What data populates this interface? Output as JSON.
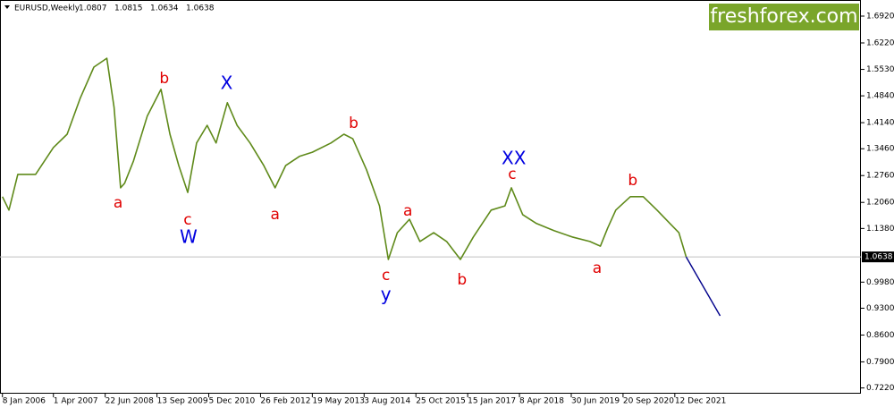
{
  "chart_data": {
    "type": "line",
    "symbol": "EURUSD,Weekly",
    "ohlc": [
      1.0807,
      1.0815,
      1.0634,
      1.0638
    ],
    "watermark": "freshforex.com",
    "last_price": 1.0638,
    "series": [
      {
        "color": "#5f8a1a",
        "x": [
          0,
          8,
          19,
          41,
          63,
          80,
          96,
          113,
          129,
          138,
          146,
          151,
          162,
          179,
          196,
          207,
          218,
          229,
          240,
          253,
          264,
          278,
          290,
          306,
          323,
          337,
          350,
          367,
          383,
          406,
          422,
          433,
          450,
          466,
          477,
          488,
          503,
          516,
          533,
          549,
          566,
          582,
          604,
          621,
          629,
          643,
          660,
          682,
          704,
          726,
          739,
          748,
          758,
          776,
          792,
          809,
          825,
          836,
          845
        ],
        "values": [
          1.221,
          1.186,
          1.279,
          1.279,
          1.349,
          1.384,
          1.477,
          1.559,
          1.582,
          1.454,
          1.244,
          1.256,
          1.314,
          1.431,
          1.501,
          1.384,
          1.302,
          1.232,
          1.361,
          1.407,
          1.361,
          1.466,
          1.407,
          1.361,
          1.302,
          1.244,
          1.302,
          1.326,
          1.337,
          1.361,
          1.384,
          1.372,
          1.291,
          1.197,
          1.057,
          1.127,
          1.162,
          1.104,
          1.127,
          1.104,
          1.057,
          1.116,
          1.186,
          1.197,
          1.244,
          1.174,
          1.151,
          1.132,
          1.116,
          1.104,
          1.092,
          1.139,
          1.186,
          1.221,
          1.221,
          1.186,
          1.151,
          1.127,
          1.0638
        ]
      },
      {
        "color": "#00008b",
        "x": [
          845,
          887
        ],
        "values": [
          1.0638,
          0.91
        ]
      }
    ],
    "annotations": [
      {
        "text": "a",
        "x": 143,
        "y": 1.204,
        "color": "#e00000"
      },
      {
        "text": "b",
        "x": 200,
        "y": 1.529,
        "color": "#e00000"
      },
      {
        "text": "c",
        "x": 229,
        "y": 1.16,
        "color": "#e00000"
      },
      {
        "text": "W",
        "x": 230,
        "y": 1.113,
        "color": "#0000e0"
      },
      {
        "text": "X",
        "x": 277,
        "y": 1.515,
        "color": "#0000e0"
      },
      {
        "text": "a",
        "x": 337,
        "y": 1.174,
        "color": "#e00000"
      },
      {
        "text": "b",
        "x": 434,
        "y": 1.412,
        "color": "#e00000"
      },
      {
        "text": "c",
        "x": 474,
        "y": 1.015,
        "color": "#e00000"
      },
      {
        "text": "y",
        "x": 474,
        "y": 0.964,
        "color": "#0000e0"
      },
      {
        "text": "a",
        "x": 501,
        "y": 1.183,
        "color": "#e00000"
      },
      {
        "text": "b",
        "x": 568,
        "y": 1.004,
        "color": "#e00000"
      },
      {
        "text": "XX",
        "x": 632,
        "y": 1.319,
        "color": "#0000e0"
      },
      {
        "text": "c",
        "x": 630,
        "y": 1.279,
        "color": "#e00000"
      },
      {
        "text": "a",
        "x": 735,
        "y": 1.034,
        "color": "#e00000"
      },
      {
        "text": "b",
        "x": 779,
        "y": 1.263,
        "color": "#e00000"
      }
    ],
    "xlim": [
      -3,
      1061
    ],
    "xticks": [
      {
        "value": 0,
        "label": "8 Jan 2006"
      },
      {
        "value": 63,
        "label": "1 Apr 2007"
      },
      {
        "value": 127,
        "label": "22 Jun 2008"
      },
      {
        "value": 191,
        "label": "13 Sep 2009"
      },
      {
        "value": 255,
        "label": "5 Dec 2010"
      },
      {
        "value": 319,
        "label": "26 Feb 2012"
      },
      {
        "value": 383,
        "label": "19 May 2013"
      },
      {
        "value": 447,
        "label": "3 Aug 2014"
      },
      {
        "value": 511,
        "label": "25 Oct 2015"
      },
      {
        "value": 575,
        "label": "15 Jan 2017"
      },
      {
        "value": 639,
        "label": "8 Apr 2018"
      },
      {
        "value": 703,
        "label": "30 Jun 2019"
      },
      {
        "value": 767,
        "label": "20 Sep 2020"
      },
      {
        "value": 831,
        "label": "12 Dec 2021"
      }
    ],
    "ylim": [
      0.707,
      1.734
    ],
    "yticks": [
      {
        "value": 1.692,
        "label": "1.6920"
      },
      {
        "value": 1.622,
        "label": "1.6220"
      },
      {
        "value": 1.553,
        "label": "1.5530"
      },
      {
        "value": 1.484,
        "label": "1.4840"
      },
      {
        "value": 1.414,
        "label": "1.4140"
      },
      {
        "value": 1.346,
        "label": "1.3460"
      },
      {
        "value": 1.276,
        "label": "1.2760"
      },
      {
        "value": 1.206,
        "label": "1.2060"
      },
      {
        "value": 1.138,
        "label": "1.1380"
      },
      {
        "value": 0.998,
        "label": "0.9980"
      },
      {
        "value": 0.93,
        "label": "0.9300"
      },
      {
        "value": 0.86,
        "label": "0.8600"
      },
      {
        "value": 0.79,
        "label": "0.7900"
      },
      {
        "value": 0.722,
        "label": "0.7220"
      }
    ]
  }
}
